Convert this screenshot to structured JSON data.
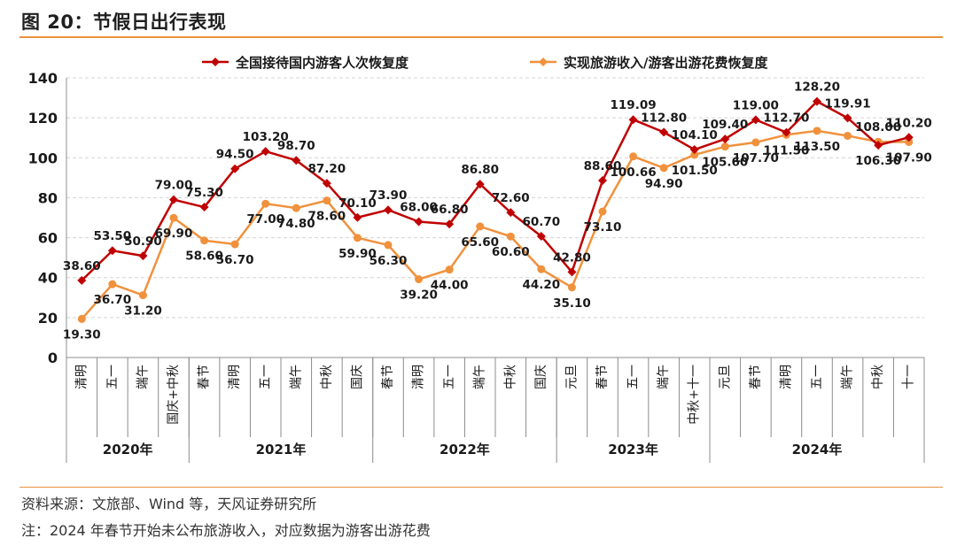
{
  "figure": {
    "title": "图 20：节假日出行表现",
    "source_note": "资料来源：文旅部、Wind 等，天风证券研究所",
    "footnote": "注：2024 年春节开始未公布旅游收入，对应数据为游客出游花费"
  },
  "colors": {
    "series1": "#c00000",
    "series2": "#f0913c",
    "rule": "#e8913c",
    "grid": "#d4d4d4"
  },
  "chart_data": {
    "type": "line",
    "title": "",
    "xlabel": "",
    "ylabel": "",
    "ylim": [
      0,
      140
    ],
    "yticks": [
      0,
      20,
      40,
      60,
      80,
      100,
      120,
      140
    ],
    "grid": "horizontal dashed",
    "legend_position": "top",
    "categories": [
      "清明",
      "五一",
      "端午",
      "国庆+中秋",
      "春节",
      "清明",
      "五一",
      "端午",
      "中秋",
      "国庆",
      "春节",
      "清明",
      "五一",
      "端午",
      "中秋",
      "国庆",
      "元旦",
      "春节",
      "五一",
      "端午",
      "中秋+十一",
      "元旦",
      "春节",
      "清明",
      "五一",
      "端午",
      "中秋",
      "十一"
    ],
    "year_groups": [
      {
        "label": "2020年",
        "start": 0,
        "end": 3
      },
      {
        "label": "2021年",
        "start": 4,
        "end": 9
      },
      {
        "label": "2022年",
        "start": 10,
        "end": 15
      },
      {
        "label": "2023年",
        "start": 16,
        "end": 20
      },
      {
        "label": "2024年",
        "start": 21,
        "end": 27
      }
    ],
    "series": [
      {
        "name": "全国接待国内游客人次恢复度",
        "values": [
          38.6,
          53.5,
          50.9,
          79.0,
          75.3,
          94.5,
          103.2,
          98.7,
          87.2,
          70.1,
          73.9,
          68.0,
          66.8,
          86.8,
          72.6,
          60.7,
          42.8,
          88.6,
          119.09,
          112.8,
          104.1,
          109.4,
          119.0,
          112.7,
          128.2,
          119.91,
          106.3,
          110.2
        ],
        "labels": [
          "38.60",
          "53.50",
          "50.90",
          "79.00",
          "75.30",
          "94.50",
          "103.20",
          "98.70",
          "87.20",
          "70.10",
          "73.90",
          "68.00",
          "66.80",
          "86.80",
          "72.60",
          "60.70",
          "42.80",
          "88.60",
          "119.09",
          "112.80",
          "104.10",
          "109.40",
          "119.00",
          "112.70",
          "128.20",
          "119.91",
          "106.30",
          "110.20"
        ]
      },
      {
        "name": "实现旅游收入/游客出游花费恢复度",
        "values": [
          19.3,
          36.7,
          31.2,
          69.9,
          58.6,
          56.7,
          77.0,
          74.8,
          78.6,
          59.9,
          56.3,
          39.2,
          44.0,
          65.6,
          60.6,
          44.2,
          35.1,
          73.1,
          100.66,
          94.9,
          101.5,
          105.6,
          107.7,
          111.5,
          113.5,
          111.0,
          108.0,
          107.9
        ],
        "labels": [
          "19.30",
          "36.70",
          "31.20",
          "69.90",
          "58.60",
          "56.70",
          "77.00",
          "74.80",
          "78.60",
          "59.90",
          "56.30",
          "39.20",
          "44.00",
          "65.60",
          "60.60",
          "44.20",
          "35.10",
          "73.10",
          "100.66",
          "94.90",
          "101.50",
          "105.60",
          "107.70",
          "111.50",
          "113.50",
          "",
          "108.00",
          "107.90"
        ]
      }
    ]
  }
}
